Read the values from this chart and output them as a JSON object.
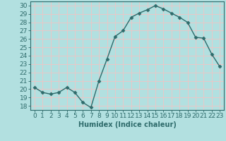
{
  "x": [
    0,
    1,
    2,
    3,
    4,
    5,
    6,
    7,
    8,
    9,
    10,
    11,
    12,
    13,
    14,
    15,
    16,
    17,
    18,
    19,
    20,
    21,
    22,
    23
  ],
  "y": [
    20.2,
    19.6,
    19.4,
    19.6,
    20.2,
    19.6,
    18.4,
    17.8,
    21.0,
    23.6,
    26.3,
    27.0,
    28.6,
    29.1,
    29.5,
    30.0,
    29.6,
    29.1,
    28.6,
    28.0,
    26.2,
    26.1,
    24.2,
    22.7
  ],
  "xlabel": "Humidex (Indice chaleur)",
  "xlim": [
    -0.5,
    23.5
  ],
  "ylim": [
    17.5,
    30.5
  ],
  "yticks": [
    18,
    19,
    20,
    21,
    22,
    23,
    24,
    25,
    26,
    27,
    28,
    29,
    30
  ],
  "xticks": [
    0,
    1,
    2,
    3,
    4,
    5,
    6,
    7,
    8,
    9,
    10,
    11,
    12,
    13,
    14,
    15,
    16,
    17,
    18,
    19,
    20,
    21,
    22,
    23
  ],
  "xtick_labels": [
    "0",
    "1",
    "2",
    "3",
    "4",
    "5",
    "6",
    "7",
    "8",
    "9",
    "10",
    "11",
    "12",
    "13",
    "14",
    "15",
    "16",
    "17",
    "18",
    "19",
    "20",
    "21",
    "22",
    "23"
  ],
  "line_color": "#2e6b6b",
  "marker": "D",
  "marker_size": 2.5,
  "bg_color": "#b2e0e0",
  "grid_color": "#e8c8c8",
  "xlabel_fontsize": 7,
  "tick_fontsize": 6.5,
  "linewidth": 1.0
}
